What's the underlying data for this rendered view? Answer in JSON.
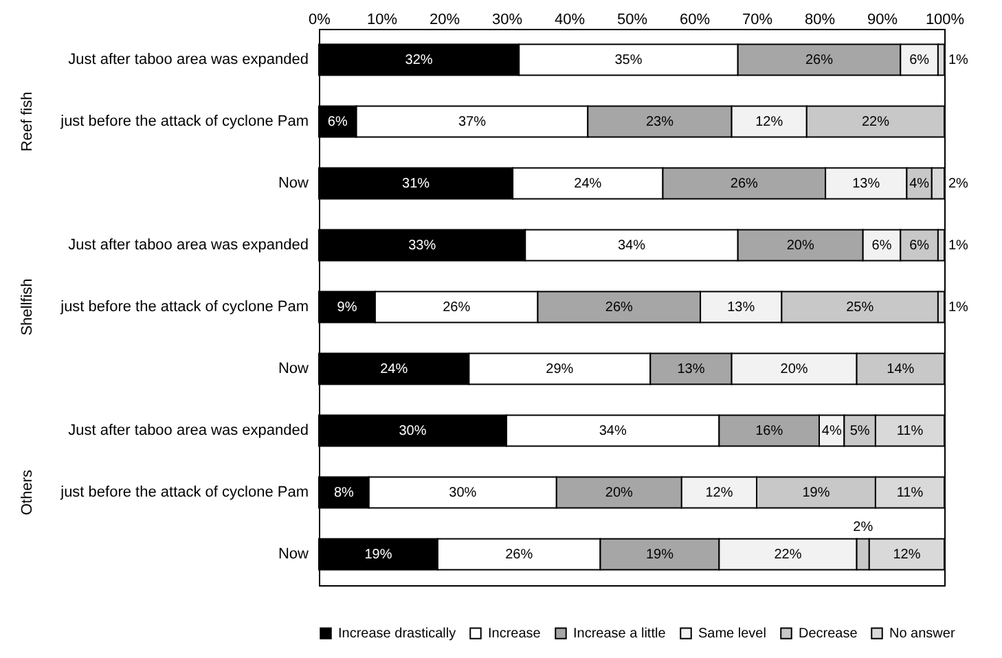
{
  "chart_data": {
    "type": "bar",
    "orientation": "horizontal",
    "stacked": true,
    "categories": [
      "Just after taboo area was expanded",
      "just before the attack of cyclone Pam",
      "Now",
      "Just after taboo area was expanded",
      "just before the attack of cyclone Pam",
      "Now",
      "Just after taboo area was expanded",
      "just before the attack of cyclone Pam",
      "Now"
    ],
    "annotations": [
      "Reef fish",
      "Shellfish",
      "Others"
    ],
    "series": [
      {
        "name": "Increase drastically",
        "color": "#000000",
        "values": [
          32,
          6,
          31,
          33,
          9,
          24,
          30,
          8,
          19
        ],
        "value_labels": [
          "32%",
          "6%",
          "31%",
          "33%",
          "9%",
          "24%",
          "30%",
          "8%",
          "19%"
        ]
      },
      {
        "name": "Increase",
        "color": "#ffffff",
        "values": [
          35,
          37,
          24,
          34,
          26,
          29,
          34,
          30,
          26
        ],
        "value_labels": [
          "35%",
          "37%",
          "24%",
          "34%",
          "26%",
          "29%",
          "34%",
          "30%",
          "26%"
        ]
      },
      {
        "name": "Increase a little",
        "color": "#a6a6a6",
        "values": [
          26,
          23,
          26,
          20,
          26,
          13,
          16,
          20,
          19
        ],
        "value_labels": [
          "26%",
          "23%",
          "26%",
          "20%",
          "26%",
          "13%",
          "16%",
          "20%",
          "19%"
        ]
      },
      {
        "name": "Same level",
        "color": "#f2f2f2",
        "values": [
          6,
          12,
          13,
          6,
          13,
          20,
          4,
          12,
          22
        ],
        "value_labels": [
          "6%",
          "12%",
          "13%",
          "6%",
          "13%",
          "20%",
          "4%",
          "12%",
          "22%"
        ]
      },
      {
        "name": "Decrease",
        "color": "#c8c8c8",
        "values": [
          null,
          22,
          4,
          6,
          25,
          14,
          5,
          19,
          2
        ],
        "value_labels": [
          null,
          "22%",
          "4%",
          "6%",
          "25%",
          "14%",
          "5%",
          "19%",
          "2%"
        ]
      },
      {
        "name": "No answer",
        "color": "#d9d9d9",
        "values": [
          1,
          null,
          2,
          1,
          1,
          null,
          11,
          11,
          12
        ],
        "value_labels": [
          "1%",
          null,
          "2%",
          "1%",
          "1%",
          null,
          "11%",
          "11%",
          "12%"
        ]
      }
    ],
    "xlim": [
      0,
      100
    ],
    "xticks": [
      {
        "value": 0,
        "label": "0%"
      },
      {
        "value": 10,
        "label": "10%"
      },
      {
        "value": 20,
        "label": "20%"
      },
      {
        "value": 30,
        "label": "30%"
      },
      {
        "value": 40,
        "label": "40%"
      },
      {
        "value": 50,
        "label": "50%"
      },
      {
        "value": 60,
        "label": "60%"
      },
      {
        "value": 70,
        "label": "70%"
      },
      {
        "value": 80,
        "label": "80%"
      },
      {
        "value": 90,
        "label": "90%"
      },
      {
        "value": 100,
        "label": "100%"
      }
    ],
    "legend": "bottom"
  }
}
